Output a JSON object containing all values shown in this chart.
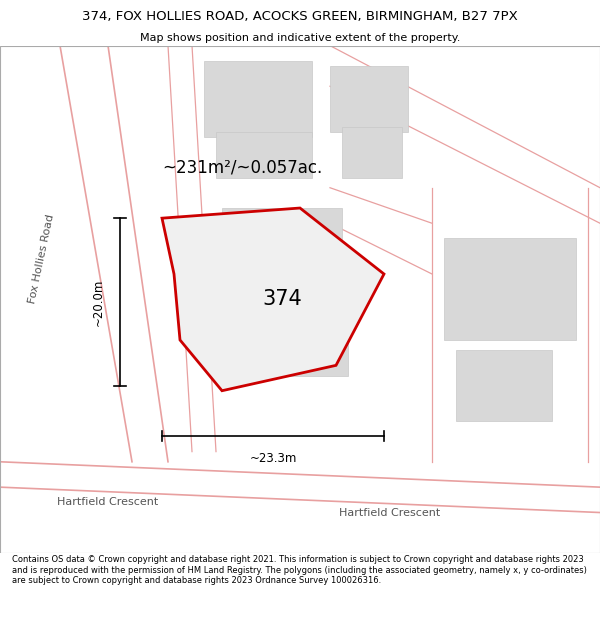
{
  "title": "374, FOX HOLLIES ROAD, ACOCKS GREEN, BIRMINGHAM, B27 7PX",
  "subtitle": "Map shows position and indicative extent of the property.",
  "footer": "Contains OS data © Crown copyright and database right 2021. This information is subject to Crown copyright and database rights 2023 and is reproduced with the permission of HM Land Registry. The polygons (including the associated geometry, namely x, y co-ordinates) are subject to Crown copyright and database rights 2023 Ordnance Survey 100026316.",
  "bg_color": "#ffffff",
  "map_bg": "#ffffff",
  "road_color": "#e8a0a0",
  "building_color": "#d8d8d8",
  "building_edge": "#c8c8c8",
  "property_fill": "#f0f0f0",
  "property_edge": "#cc0000",
  "property_linewidth": 2.0,
  "area_text": "~231m²/~0.057ac.",
  "number_text": "374",
  "dim_width": "~23.3m",
  "dim_height": "~20.0m",
  "road_label_left": "Fox Hollies Road",
  "road_label_bottom_left": "Hartfield Crescent",
  "road_label_bottom_right": "Hartfield Crescent",
  "title_fontsize": 9.5,
  "subtitle_fontsize": 8.0,
  "footer_fontsize": 6.0
}
